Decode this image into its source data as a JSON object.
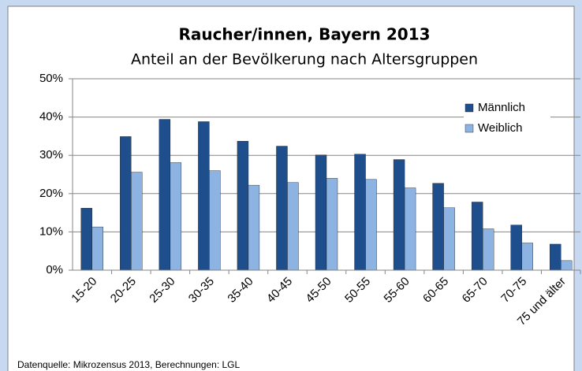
{
  "chart_data": {
    "type": "bar",
    "title": "Raucher/innen, Bayern 2013",
    "subtitle": "Anteil an der Bevölkerung nach Altersgruppen",
    "source": "Datenquelle: Mikrozensus 2013, Berechnungen: LGL",
    "categories": [
      "15-20",
      "20-25",
      "25-30",
      "30-35",
      "35-40",
      "40-45",
      "45-50",
      "50-55",
      "55-60",
      "60-65",
      "65-70",
      "70-75",
      "75 und älter"
    ],
    "series": [
      {
        "name": "Männlich",
        "color": "#1f4e8d",
        "values": [
          16.2,
          34.9,
          39.4,
          38.8,
          33.7,
          32.4,
          30.1,
          30.3,
          28.9,
          22.7,
          17.8,
          11.8,
          6.8
        ]
      },
      {
        "name": "Weiblich",
        "color": "#8db3e2",
        "values": [
          11.3,
          25.6,
          28.1,
          26.0,
          22.2,
          22.9,
          24.0,
          23.7,
          21.5,
          16.3,
          10.8,
          7.1,
          2.5
        ]
      }
    ],
    "ylim": [
      0,
      50
    ],
    "yticks": [
      {
        "value": 0,
        "label": "0%"
      },
      {
        "value": 10,
        "label": "10%"
      },
      {
        "value": 20,
        "label": "20%"
      },
      {
        "value": 30,
        "label": "30%"
      },
      {
        "value": 40,
        "label": "40%"
      },
      {
        "value": 50,
        "label": "50%"
      }
    ],
    "grid": true,
    "legend": "upper right"
  }
}
